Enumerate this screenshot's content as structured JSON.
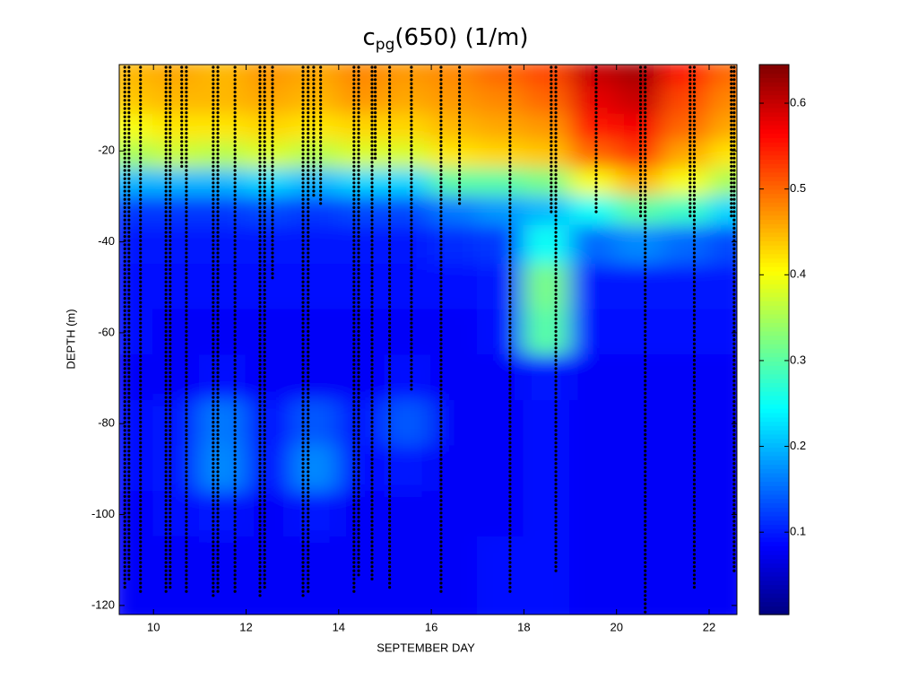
{
  "chart_data": {
    "type": "heatmap",
    "title": {
      "main": "c",
      "subscript": "pg",
      "rest": "(650) (1/m)"
    },
    "x_label": "SEPTEMBER DAY",
    "y_label": "DEPTH (m)",
    "xlim": [
      9.26,
      22.6
    ],
    "ylim": [
      -122,
      -1
    ],
    "xticks": [
      10,
      12,
      14,
      16,
      18,
      20,
      22
    ],
    "yticks": [
      -120,
      -100,
      -80,
      -60,
      -40,
      -20
    ],
    "clim": [
      0.004,
      0.645
    ],
    "cticks": [
      0.1,
      0.2,
      0.3,
      0.4,
      0.5,
      0.6
    ],
    "colormap": "jet",
    "field": {
      "x": [
        9.5,
        10.5,
        11.5,
        12.5,
        13.5,
        14.5,
        15.5,
        16.5,
        17.5,
        18.5,
        19.5,
        20.5,
        21.5,
        22.5
      ],
      "depth": [
        -3,
        -9,
        -15,
        -21,
        -27,
        -33,
        -40,
        -50,
        -60,
        -70,
        -80,
        -90,
        -100,
        -110,
        -120
      ],
      "values": [
        [
          0.45,
          0.44,
          0.4,
          0.35,
          0.2,
          0.12,
          0.1,
          0.09,
          0.09,
          0.08,
          0.09,
          0.09,
          0.08,
          0.08,
          0.08
        ],
        [
          0.46,
          0.45,
          0.42,
          0.37,
          0.2,
          0.12,
          0.1,
          0.09,
          0.08,
          0.08,
          0.1,
          0.1,
          0.09,
          0.08,
          0.08
        ],
        [
          0.45,
          0.45,
          0.42,
          0.36,
          0.2,
          0.12,
          0.1,
          0.09,
          0.08,
          0.09,
          0.16,
          0.17,
          0.1,
          0.08,
          0.08
        ],
        [
          0.47,
          0.46,
          0.43,
          0.38,
          0.22,
          0.13,
          0.1,
          0.09,
          0.08,
          0.08,
          0.09,
          0.09,
          0.08,
          0.08,
          0.08
        ],
        [
          0.46,
          0.45,
          0.42,
          0.36,
          0.2,
          0.12,
          0.1,
          0.09,
          0.08,
          0.08,
          0.14,
          0.17,
          0.1,
          0.08,
          0.08
        ],
        [
          0.48,
          0.47,
          0.43,
          0.38,
          0.22,
          0.13,
          0.1,
          0.09,
          0.08,
          0.08,
          0.1,
          0.09,
          0.08,
          0.08,
          0.08
        ],
        [
          0.47,
          0.46,
          0.43,
          0.38,
          0.22,
          0.13,
          0.1,
          0.09,
          0.08,
          0.09,
          0.14,
          0.1,
          0.08,
          0.08,
          0.08
        ],
        [
          0.48,
          0.47,
          0.45,
          0.42,
          0.3,
          0.16,
          0.11,
          0.09,
          0.08,
          0.08,
          0.08,
          0.08,
          0.08,
          0.08,
          0.08
        ],
        [
          0.5,
          0.48,
          0.46,
          0.43,
          0.3,
          0.18,
          0.12,
          0.1,
          0.09,
          0.08,
          0.08,
          0.08,
          0.08,
          0.09,
          0.09
        ],
        [
          0.52,
          0.5,
          0.47,
          0.44,
          0.32,
          0.2,
          0.25,
          0.32,
          0.3,
          0.1,
          0.09,
          0.09,
          0.09,
          0.09,
          0.09
        ],
        [
          0.6,
          0.58,
          0.55,
          0.5,
          0.4,
          0.25,
          0.15,
          0.1,
          0.09,
          0.08,
          0.08,
          0.08,
          0.08,
          0.08,
          0.08
        ],
        [
          0.62,
          0.6,
          0.57,
          0.53,
          0.45,
          0.3,
          0.17,
          0.1,
          0.09,
          0.08,
          0.08,
          0.08,
          0.08,
          0.08,
          0.08
        ],
        [
          0.55,
          0.52,
          0.5,
          0.46,
          0.4,
          0.28,
          0.15,
          0.1,
          0.09,
          0.08,
          0.08,
          0.08,
          0.08,
          0.08,
          0.08
        ],
        [
          0.5,
          0.48,
          0.46,
          0.42,
          0.35,
          0.22,
          0.13,
          0.1,
          0.09,
          0.08,
          0.08,
          0.08,
          0.08,
          0.08,
          0.08
        ]
      ]
    },
    "casts": {
      "x": [
        9.38,
        9.47,
        9.72,
        10.27,
        10.36,
        10.61,
        10.71,
        11.29,
        11.39,
        11.76,
        12.3,
        12.4,
        12.57,
        13.23,
        13.34,
        13.46,
        13.61,
        14.33,
        14.43,
        14.72,
        14.79,
        15.1,
        15.57,
        16.21,
        16.61,
        17.7,
        18.59,
        18.69,
        19.56,
        20.52,
        20.62,
        21.59,
        21.68,
        22.48,
        22.54
      ],
      "max_depth": [
        -116,
        -115,
        -117,
        -117,
        -116,
        -24,
        -117,
        -118,
        -117,
        -117,
        -118,
        -116,
        -48,
        -118,
        -117,
        -30,
        -32,
        -117,
        -114,
        -115,
        -22,
        -116,
        -73,
        -117,
        -32,
        -117,
        -34,
        -113,
        -34,
        -35,
        -122,
        -35,
        -116,
        -35,
        -113
      ]
    }
  }
}
